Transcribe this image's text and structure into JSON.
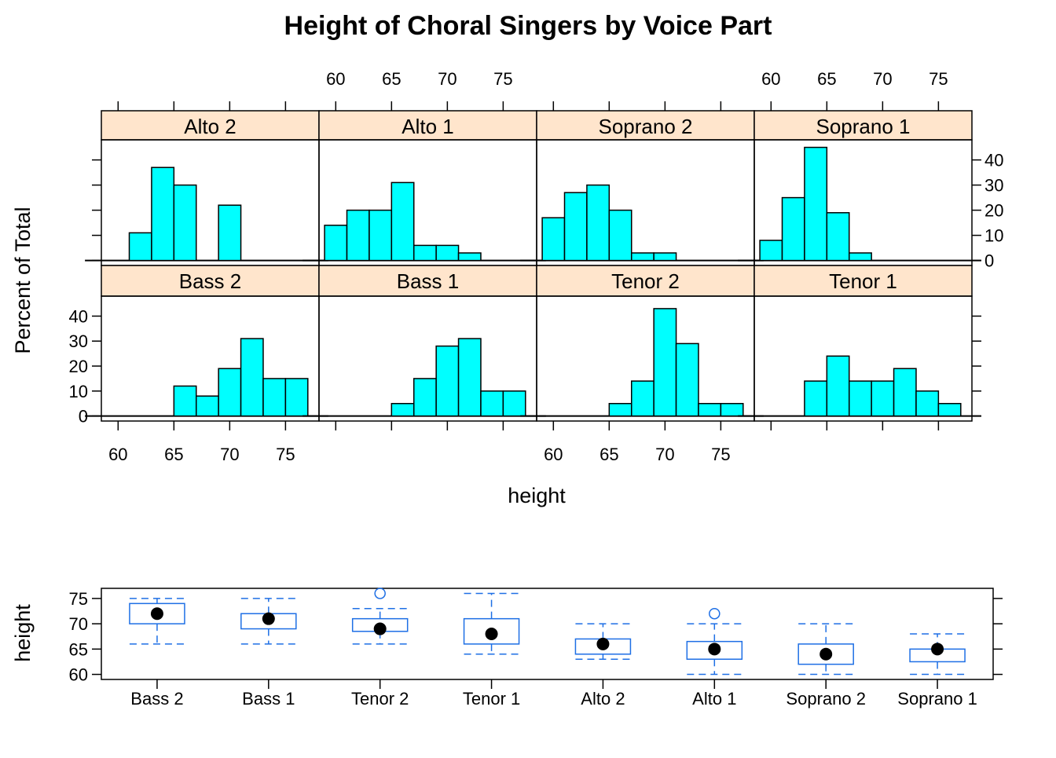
{
  "title": "Height of Choral Singers by Voice Part",
  "colors": {
    "bar_fill": "#00FFFF",
    "strip_fill": "#FFE5CC",
    "box_stroke": "#1E6FE5",
    "median_dot": "#000000",
    "frame": "#000000"
  },
  "chart_data": [
    {
      "type": "bar",
      "subtype": "histogram-panels",
      "xlabel": "height",
      "ylabel": "Percent of Total",
      "xlim": [
        58.5,
        78
      ],
      "ylim": [
        -2,
        48
      ],
      "x_ticks": [
        60,
        65,
        70,
        75
      ],
      "y_ticks": [
        0,
        10,
        20,
        30,
        40
      ],
      "bin_edges": [
        59,
        61,
        63,
        65,
        67,
        69,
        71,
        73,
        75,
        77
      ],
      "panels": [
        {
          "name": "Alto 2",
          "values": [
            0,
            11,
            37,
            30,
            0,
            22,
            0,
            0,
            0
          ]
        },
        {
          "name": "Alto 1",
          "values": [
            14,
            20,
            20,
            31,
            6,
            6,
            3,
            0,
            0
          ]
        },
        {
          "name": "Soprano 2",
          "values": [
            17,
            27,
            30,
            20,
            3,
            3,
            0,
            0,
            0
          ]
        },
        {
          "name": "Soprano 1",
          "values": [
            8,
            25,
            45,
            19,
            3,
            0,
            0,
            0,
            0
          ]
        },
        {
          "name": "Bass 2",
          "values": [
            0,
            0,
            0,
            12,
            8,
            19,
            31,
            15,
            15
          ]
        },
        {
          "name": "Bass 1",
          "values": [
            0,
            0,
            0,
            5,
            15,
            28,
            31,
            10,
            10
          ]
        },
        {
          "name": "Tenor 2",
          "values": [
            0,
            0,
            0,
            5,
            14,
            43,
            29,
            5,
            5
          ]
        },
        {
          "name": "Tenor 1",
          "values": [
            0,
            0,
            14,
            24,
            14,
            14,
            19,
            10,
            5
          ]
        }
      ]
    },
    {
      "type": "boxplot",
      "ylabel": "height",
      "ylim": [
        59,
        77
      ],
      "y_ticks": [
        60,
        65,
        70,
        75
      ],
      "categories": [
        "Bass 2",
        "Bass 1",
        "Tenor 2",
        "Tenor 1",
        "Alto 2",
        "Alto 1",
        "Soprano 2",
        "Soprano 1"
      ],
      "boxes": [
        {
          "whisker_low": 66,
          "q1": 70,
          "median": 72,
          "q3": 74,
          "whisker_high": 75,
          "outliers": []
        },
        {
          "whisker_low": 66,
          "q1": 69,
          "median": 71,
          "q3": 72,
          "whisker_high": 75,
          "outliers": []
        },
        {
          "whisker_low": 66,
          "q1": 68.5,
          "median": 69,
          "q3": 71,
          "whisker_high": 73,
          "outliers": [
            76
          ]
        },
        {
          "whisker_low": 64,
          "q1": 66,
          "median": 68,
          "q3": 71,
          "whisker_high": 76,
          "outliers": []
        },
        {
          "whisker_low": 63,
          "q1": 64,
          "median": 66,
          "q3": 67,
          "whisker_high": 70,
          "outliers": []
        },
        {
          "whisker_low": 60,
          "q1": 63,
          "median": 65,
          "q3": 66.5,
          "whisker_high": 70,
          "outliers": [
            72
          ]
        },
        {
          "whisker_low": 60,
          "q1": 62,
          "median": 64,
          "q3": 66,
          "whisker_high": 70,
          "outliers": []
        },
        {
          "whisker_low": 60,
          "q1": 62.5,
          "median": 65,
          "q3": 65,
          "whisker_high": 68,
          "outliers": []
        }
      ]
    }
  ]
}
